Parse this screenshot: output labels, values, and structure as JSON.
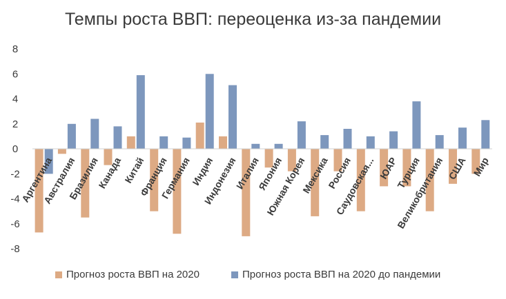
{
  "chart_data": {
    "type": "bar",
    "title": "Темпы роста ВВП: переоценка из-за пандемии",
    "categories": [
      "Аргентина",
      "Австралия",
      "Бразилия",
      "Канада",
      "Китай",
      "Франция",
      "Германия",
      "Индия",
      "Индонезия",
      "Италия",
      "Япония",
      "Южная Корея",
      "Мексика",
      "Россия",
      "Саудовская...",
      "ЮАР",
      "Турция",
      "Великобритания",
      "США",
      "Мир"
    ],
    "series": [
      {
        "name": "Прогноз роста ВВП на 2020",
        "color": "#DDAA84",
        "values": [
          -6.7,
          -0.4,
          -5.5,
          -1.3,
          1.0,
          -5.0,
          -6.8,
          2.1,
          1.0,
          -7.0,
          -1.5,
          -1.8,
          -5.4,
          -1.8,
          -5.0,
          -3.0,
          -3.0,
          -5.0,
          -2.8,
          -2.0
        ]
      },
      {
        "name": "Прогноз роста ВВП на 2020 до пандемии",
        "color": "#7D97BD",
        "values": [
          -2.0,
          2.0,
          2.4,
          1.8,
          5.9,
          1.0,
          0.9,
          6.0,
          5.1,
          0.4,
          0.4,
          2.2,
          1.1,
          1.6,
          1.0,
          1.4,
          3.8,
          1.1,
          1.7,
          2.3
        ]
      }
    ],
    "yticks": [
      8,
      6,
      4,
      2,
      0,
      -2,
      -4,
      -6,
      -8
    ],
    "ylim": [
      -8,
      8
    ],
    "grid": false,
    "legend_position": "bottom"
  }
}
